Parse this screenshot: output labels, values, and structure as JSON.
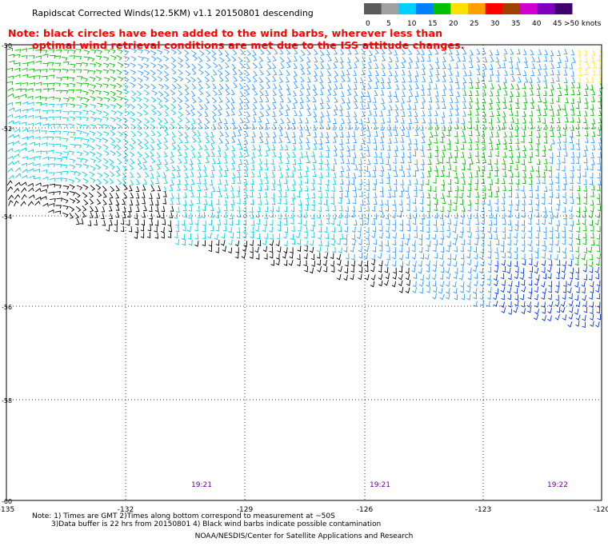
{
  "title": "Rapidscat Corrected Winds(12.5KM) v1.1 20150801 descending",
  "note_line1": "Note: black circles have been added to the wind barbs, wherever less than",
  "note_line2": "optimal wind retrieval conditions are met due to the ISS attitude changes.",
  "legend": {
    "labels": [
      "0",
      "5",
      "10",
      "15",
      "20",
      "25",
      "30",
      "35",
      "40",
      "45",
      ">50 knots"
    ],
    "colors": [
      "#5a5a5a",
      "#a0a0a0",
      "#00d0ff",
      "#0080ff",
      "#00c000",
      "#ffe000",
      "#ffa000",
      "#ff0000",
      "#a04000",
      "#d000d0",
      "#8000c0",
      "#400070"
    ]
  },
  "lat_labels": [
    "-50",
    "-52",
    "-54",
    "-56",
    "-58",
    "-60"
  ],
  "lon_labels": [
    "-135",
    "-132",
    "-129",
    "-126",
    "-123",
    "-120"
  ],
  "time_labels": [
    "19:21",
    "19:21",
    "19:22"
  ],
  "footer": {
    "line1": "Note: 1) Times are GMT 2)Times along bottom correspond to measurement at ~50S",
    "line2": "3)Data buffer is 22 hrs from 20150801 4) Black wind barbs indicate possible contamination",
    "line3": "NOAA/NESDIS/Center for Satellite Applications and Research"
  },
  "colors": {
    "barb_black": "#000000",
    "barb_cyan": "#00d0e0",
    "barb_light_blue": "#3399ff",
    "barb_blue": "#0033ee",
    "barb_green": "#00bb00",
    "barb_yellow": "#ffee00",
    "grid": "#000000",
    "time_label": "#660099"
  }
}
